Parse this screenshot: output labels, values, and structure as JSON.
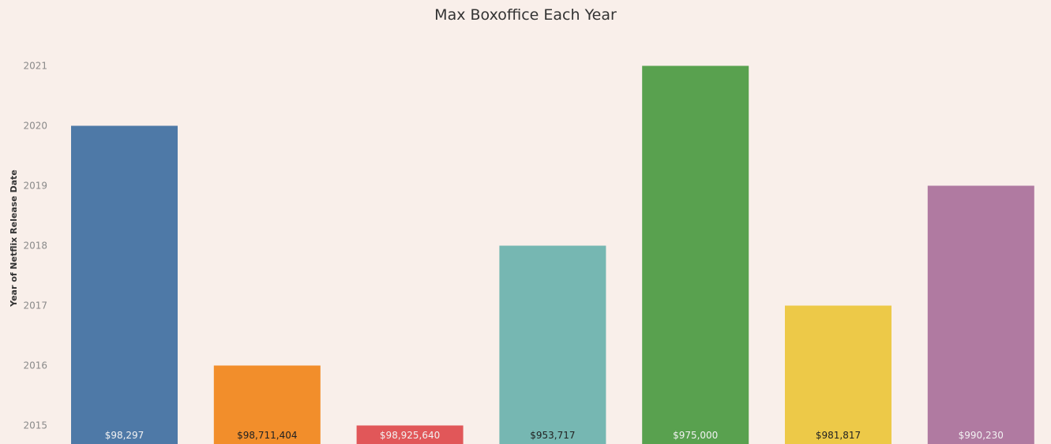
{
  "chart_data": {
    "type": "bar",
    "title": "Max Boxoffice Each Year",
    "xlabel": "",
    "ylabel": "Year of Netflix Release Date",
    "categories": [
      "$98,297",
      "$98,711,404",
      "$98,925,640",
      "$953,717",
      "$975,000",
      "$981,817",
      "$990,230"
    ],
    "values": [
      2020,
      2016,
      2015,
      2018,
      2021,
      2017,
      2019
    ],
    "colors": [
      "#4e79a7",
      "#f28e2b",
      "#e15759",
      "#76b7b2",
      "#59a14f",
      "#edc948",
      "#b07aa1"
    ],
    "label_colors": [
      "#f2f2f2",
      "#222222",
      "#f2f2f2",
      "#222222",
      "#f2f2f2",
      "#222222",
      "#f2f2f2"
    ],
    "yticks": [
      2015,
      2016,
      2017,
      2018,
      2019,
      2020,
      2021
    ],
    "ylim": [
      2014.7,
      2021
    ],
    "grid": false,
    "legend": "none"
  }
}
